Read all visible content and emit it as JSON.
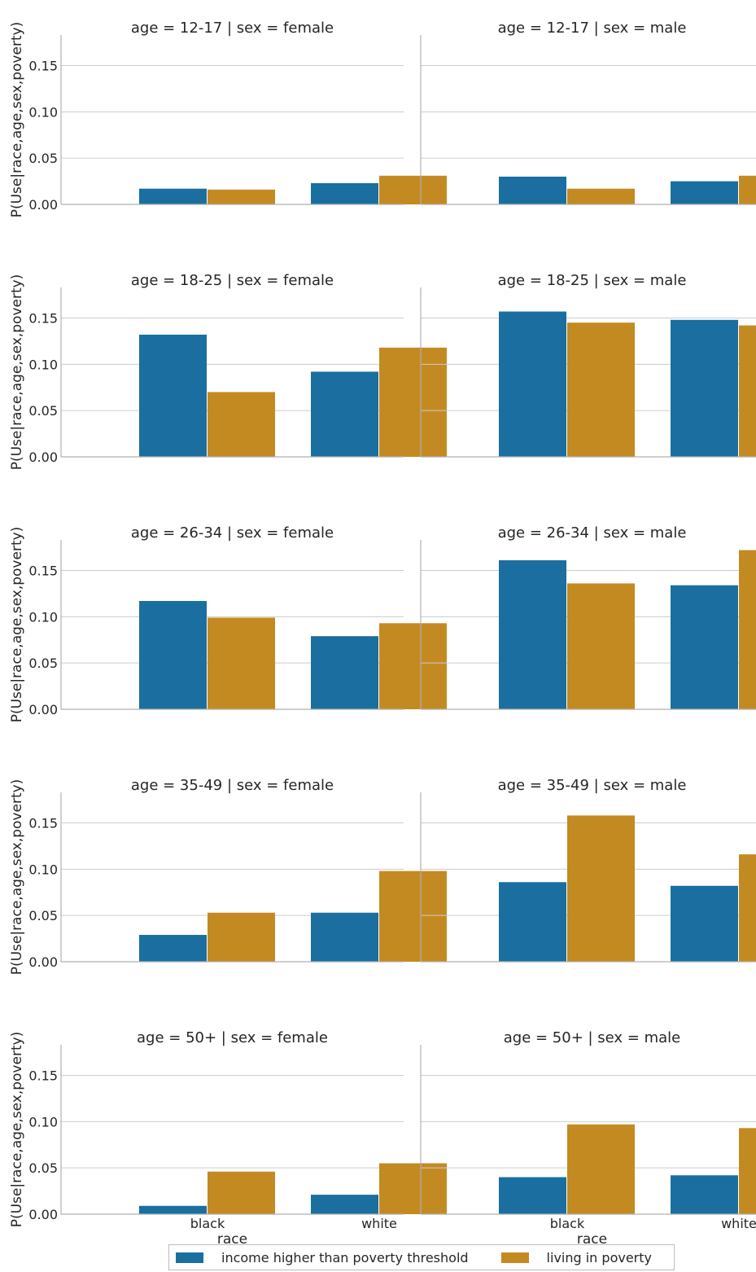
{
  "chart_data": {
    "type": "bar",
    "ylabel": "P(Use|race,age,sex,poverty)",
    "xlabel": "race",
    "ylim": [
      0,
      0.183
    ],
    "yticks": [
      "0.00",
      "0.05",
      "0.10",
      "0.15"
    ],
    "categories": [
      "black",
      "white"
    ],
    "series_names": [
      "income higher than poverty threshold",
      "living in poverty"
    ],
    "colors": [
      "#1a6fa0",
      "#c48a22"
    ],
    "grid": true,
    "legend_position": "bottom-center",
    "panels": [
      {
        "title": "age = 12-17 | sex = female",
        "values": [
          [
            0.017,
            0.023
          ],
          [
            0.016,
            0.031
          ]
        ]
      },
      {
        "title": "age = 12-17 | sex = male",
        "values": [
          [
            0.03,
            0.025
          ],
          [
            0.017,
            0.031
          ]
        ]
      },
      {
        "title": "age = 18-25 | sex = female",
        "values": [
          [
            0.132,
            0.092
          ],
          [
            0.07,
            0.118
          ]
        ]
      },
      {
        "title": "age = 18-25 | sex = male",
        "values": [
          [
            0.157,
            0.148
          ],
          [
            0.145,
            0.142
          ]
        ]
      },
      {
        "title": "age = 26-34 | sex = female",
        "values": [
          [
            0.117,
            0.079
          ],
          [
            0.099,
            0.093
          ]
        ]
      },
      {
        "title": "age = 26-34 | sex = male",
        "values": [
          [
            0.161,
            0.134
          ],
          [
            0.136,
            0.172
          ]
        ]
      },
      {
        "title": "age = 35-49 | sex = female",
        "values": [
          [
            0.029,
            0.053
          ],
          [
            0.053,
            0.098
          ]
        ]
      },
      {
        "title": "age = 35-49 | sex = male",
        "values": [
          [
            0.086,
            0.082
          ],
          [
            0.158,
            0.116
          ]
        ]
      },
      {
        "title": "age = 50+ | sex = female",
        "values": [
          [
            0.009,
            0.021
          ],
          [
            0.046,
            0.055
          ]
        ]
      },
      {
        "title": "age = 50+ | sex = male",
        "values": [
          [
            0.04,
            0.042
          ],
          [
            0.097,
            0.093
          ]
        ]
      }
    ]
  }
}
